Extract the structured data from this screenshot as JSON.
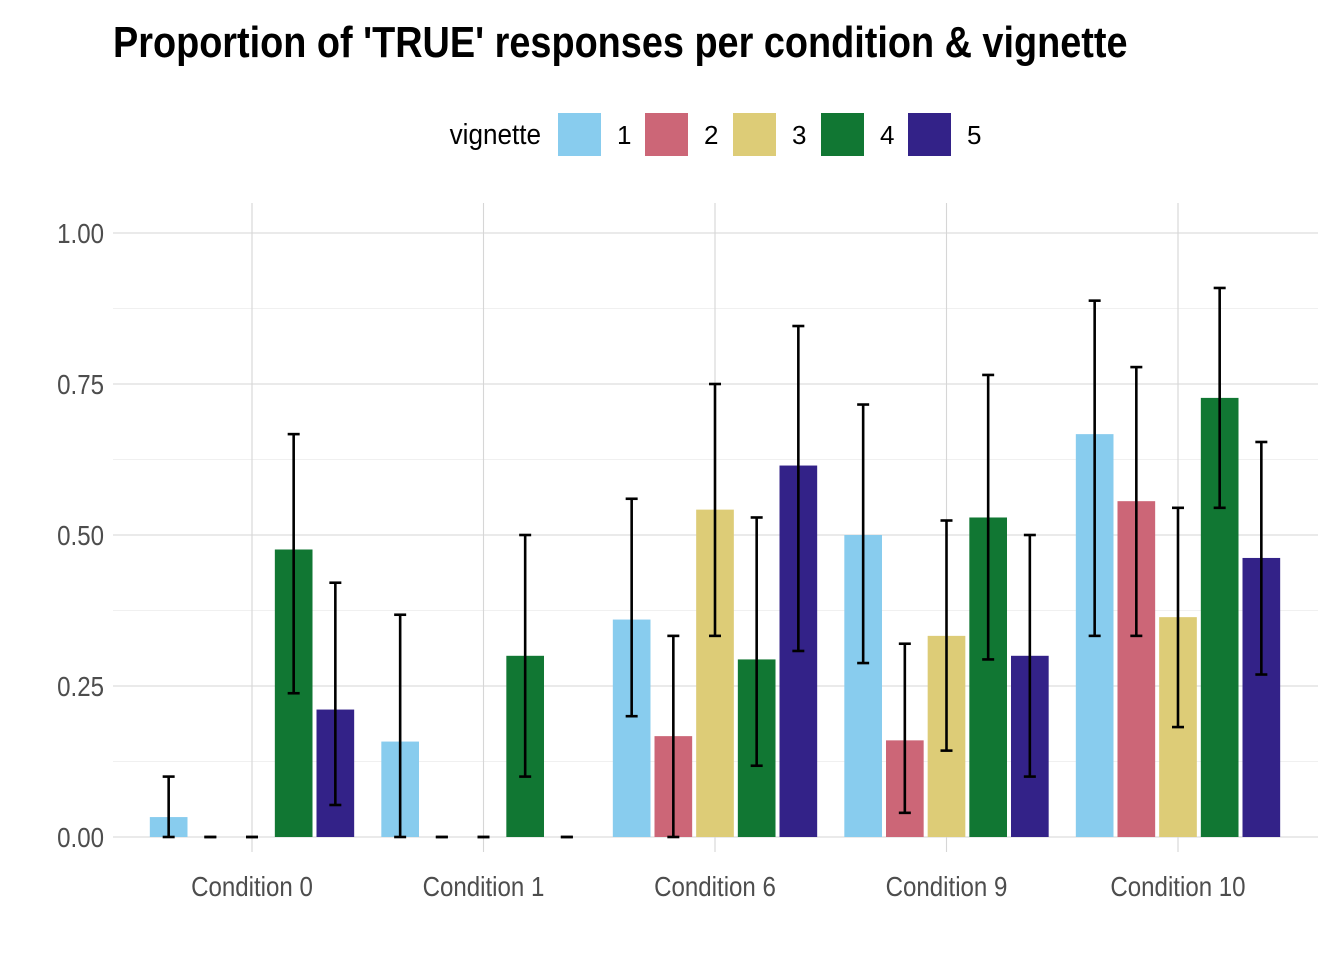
{
  "chart_data": {
    "type": "bar",
    "title": "Proportion of 'TRUE' responses per condition & vignette",
    "xlabel": "",
    "ylabel": "",
    "ylim": [
      0,
      1.05
    ],
    "yticks": [
      "0.00",
      "0.25",
      "0.50",
      "0.75",
      "1.00"
    ],
    "ytick_values": [
      0,
      0.25,
      0.5,
      0.75,
      1.0
    ],
    "categories": [
      "Condition 0",
      "Condition 1",
      "Condition 6",
      "Condition 9",
      "Condition 10"
    ],
    "legend": {
      "title": "vignette",
      "position": "top"
    },
    "grid": true,
    "error_bars": true,
    "series": [
      {
        "name": "1",
        "color": "#88CCEE",
        "values": [
          0.033,
          0.158,
          0.36,
          0.5,
          0.667
        ],
        "err_low": [
          0.0,
          0.0,
          0.2,
          0.288,
          0.333
        ],
        "err_high": [
          0.1,
          0.368,
          0.56,
          0.716,
          0.888
        ]
      },
      {
        "name": "2",
        "color": "#CC6677",
        "values": [
          0.0,
          0.0,
          0.167,
          0.16,
          0.556
        ],
        "err_low": [
          0.0,
          0.0,
          0.0,
          0.04,
          0.333
        ],
        "err_high": [
          0.0,
          0.0,
          0.333,
          0.32,
          0.778
        ]
      },
      {
        "name": "3",
        "color": "#DDCC77",
        "values": [
          0.0,
          0.0,
          0.542,
          0.333,
          0.364
        ],
        "err_low": [
          0.0,
          0.0,
          0.333,
          0.143,
          0.182
        ],
        "err_high": [
          0.0,
          0.0,
          0.75,
          0.524,
          0.545
        ]
      },
      {
        "name": "4",
        "color": "#117733",
        "values": [
          0.476,
          0.3,
          0.294,
          0.529,
          0.727
        ],
        "err_low": [
          0.238,
          0.1,
          0.118,
          0.294,
          0.545
        ],
        "err_high": [
          0.667,
          0.5,
          0.529,
          0.765,
          0.909
        ]
      },
      {
        "name": "5",
        "color": "#332288",
        "values": [
          0.211,
          0.0,
          0.615,
          0.3,
          0.462
        ],
        "err_low": [
          0.053,
          0.0,
          0.308,
          0.1,
          0.269
        ],
        "err_high": [
          0.421,
          0.0,
          0.846,
          0.5,
          0.654
        ]
      }
    ]
  }
}
